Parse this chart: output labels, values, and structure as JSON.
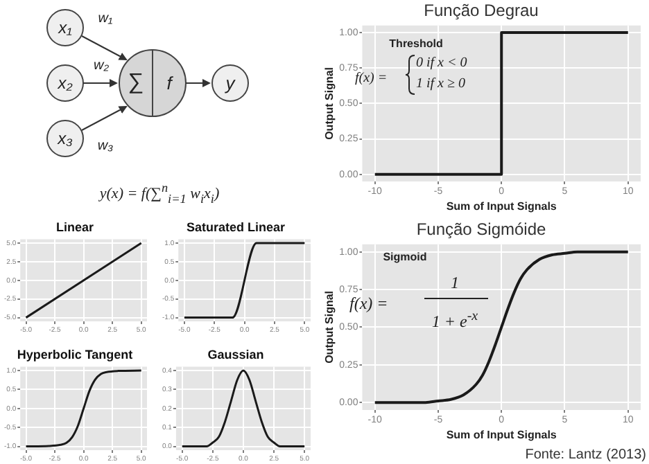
{
  "chart_data": [
    {
      "type": "other",
      "annotations": [
        "x₁",
        "x₂",
        "x₃",
        "w₁",
        "w₂",
        "w₃",
        "∑",
        "f",
        "y",
        "y(x) = f(∑$^{n}$$_{i=1}$ w$_{i}$x$_{i}$)"
      ]
    },
    {
      "type": "line",
      "title": "Função Degrau",
      "xlabel": "Sum of Input Signals",
      "ylabel": "Output Signal",
      "annotations": [
        "Threshold",
        "f(x) =",
        "0 if x < 0",
        "1 if x ≥ 0"
      ],
      "x": [
        -10,
        0,
        0,
        10
      ],
      "series": [
        {
          "color": "#1a1a1a",
          "values": [
            0,
            0,
            1,
            1
          ]
        }
      ],
      "xlim": [
        -11,
        11
      ],
      "ylim": [
        -0.05,
        1.05
      ],
      "xticks": [
        -10,
        -5,
        0,
        5,
        10
      ],
      "yticks": [
        {
          "value": 0,
          "label": "0.00"
        },
        {
          "value": 0.25,
          "label": "0.25"
        },
        {
          "value": 0.5,
          "label": "0.50"
        },
        {
          "value": 0.75,
          "label": "0.75"
        },
        {
          "value": 1,
          "label": "1.00"
        }
      ],
      "grid": true
    },
    {
      "type": "line",
      "title": "Função Sigmóide",
      "xlabel": "Sum of Input Signals",
      "ylabel": "Output Signal",
      "annotations": [
        "Sigmoid",
        "f(x) =",
        "1",
        "1 + e$^{-x}$",
        "Fonte: Lantz (2013)"
      ],
      "x": [
        -10,
        -8,
        -6,
        -5,
        -4,
        -3,
        -2,
        -1.5,
        -1,
        -0.5,
        0,
        0.5,
        1,
        1.5,
        2,
        3,
        4,
        5,
        6,
        8,
        10
      ],
      "series": [
        {
          "color": "#1a1a1a",
          "values": [
            0,
            0,
            0,
            0.01,
            0.02,
            0.05,
            0.12,
            0.18,
            0.27,
            0.38,
            0.5,
            0.62,
            0.73,
            0.82,
            0.88,
            0.95,
            0.98,
            0.99,
            1,
            1,
            1
          ]
        }
      ],
      "xlim": [
        -11,
        11
      ],
      "ylim": [
        -0.05,
        1.05
      ],
      "xticks": [
        -10,
        -5,
        0,
        5,
        10
      ],
      "yticks": [
        {
          "value": 0,
          "label": "0.00"
        },
        {
          "value": 0.25,
          "label": "0.25"
        },
        {
          "value": 0.5,
          "label": "0.50"
        },
        {
          "value": 0.75,
          "label": "0.75"
        },
        {
          "value": 1,
          "label": "1.00"
        }
      ],
      "grid": true
    },
    {
      "type": "line",
      "title": "Linear",
      "x": [
        -5,
        5
      ],
      "series": [
        {
          "color": "#1a1a1a",
          "values": [
            -5,
            5
          ]
        }
      ],
      "xlim": [
        -5.5,
        5.5
      ],
      "ylim": [
        -5.5,
        5.5
      ],
      "xticks": [
        {
          "value": -5,
          "label": "-5.0"
        },
        {
          "value": -2.5,
          "label": "-2.5"
        },
        {
          "value": 0,
          "label": "0.0"
        },
        {
          "value": 2.5,
          "label": "2.5"
        },
        {
          "value": 5,
          "label": "5.0"
        }
      ],
      "yticks": [
        {
          "value": -5,
          "label": "-5.0"
        },
        {
          "value": -2.5,
          "label": "-2.5"
        },
        {
          "value": 0,
          "label": "0.0"
        },
        {
          "value": 2.5,
          "label": "2.5"
        },
        {
          "value": 5,
          "label": "5.0"
        }
      ],
      "grid": true
    },
    {
      "type": "line",
      "title": "Saturated Linear",
      "x": [
        -5,
        -1,
        1,
        5
      ],
      "series": [
        {
          "color": "#1a1a1a",
          "values": [
            -1,
            -1,
            1,
            1
          ]
        }
      ],
      "xlim": [
        -5.5,
        5.5
      ],
      "ylim": [
        -1.1,
        1.1
      ],
      "xticks": [
        {
          "value": -5,
          "label": "-5.0"
        },
        {
          "value": -2.5,
          "label": "-2.5"
        },
        {
          "value": 0,
          "label": "0.0"
        },
        {
          "value": 2.5,
          "label": "2.5"
        },
        {
          "value": 5,
          "label": "5.0"
        }
      ],
      "yticks": [
        {
          "value": -1,
          "label": "-1.0"
        },
        {
          "value": -0.5,
          "label": "-0.5"
        },
        {
          "value": 0,
          "label": "0.0"
        },
        {
          "value": 0.5,
          "label": "0.5"
        },
        {
          "value": 1,
          "label": "1.0"
        }
      ],
      "grid": true
    },
    {
      "type": "line",
      "title": "Hyperbolic Tangent",
      "x": [
        -5,
        -3,
        -2,
        -1.5,
        -1,
        -0.5,
        0,
        0.5,
        1,
        1.5,
        2,
        3,
        5
      ],
      "series": [
        {
          "color": "#1a1a1a",
          "values": [
            -1,
            -0.99,
            -0.96,
            -0.91,
            -0.76,
            -0.46,
            0,
            0.46,
            0.76,
            0.91,
            0.96,
            0.99,
            1
          ]
        }
      ],
      "xlim": [
        -5.5,
        5.5
      ],
      "ylim": [
        -1.1,
        1.1
      ],
      "xticks": [
        {
          "value": -5,
          "label": "-5.0"
        },
        {
          "value": -2.5,
          "label": "-2.5"
        },
        {
          "value": 0,
          "label": "0.0"
        },
        {
          "value": 2.5,
          "label": "2.5"
        },
        {
          "value": 5,
          "label": "5.0"
        }
      ],
      "yticks": [
        {
          "value": -1,
          "label": "-1.0"
        },
        {
          "value": -0.5,
          "label": "-0.5"
        },
        {
          "value": 0,
          "label": "0.0"
        },
        {
          "value": 0.5,
          "label": "0.5"
        },
        {
          "value": 1,
          "label": "1.0"
        }
      ],
      "grid": true
    },
    {
      "type": "line",
      "title": "Gaussian",
      "x": [
        -5,
        -3,
        -2.5,
        -2,
        -1.5,
        -1,
        -0.5,
        0,
        0.5,
        1,
        1.5,
        2,
        2.5,
        3,
        5
      ],
      "series": [
        {
          "color": "#1a1a1a",
          "values": [
            0,
            0,
            0.02,
            0.05,
            0.13,
            0.24,
            0.35,
            0.4,
            0.35,
            0.24,
            0.13,
            0.05,
            0.02,
            0,
            0
          ]
        }
      ],
      "xlim": [
        -5.5,
        5.5
      ],
      "ylim": [
        -0.02,
        0.42
      ],
      "xticks": [
        {
          "value": -5,
          "label": "-5.0"
        },
        {
          "value": -2.5,
          "label": "-2.5"
        },
        {
          "value": 0,
          "label": "0.0"
        },
        {
          "value": 2.5,
          "label": "2.5"
        },
        {
          "value": 5,
          "label": "5.0"
        }
      ],
      "yticks": [
        {
          "value": 0,
          "label": "0.0"
        },
        {
          "value": 0.1,
          "label": "0.1"
        },
        {
          "value": 0.2,
          "label": "0.2"
        },
        {
          "value": 0.3,
          "label": "0.3"
        },
        {
          "value": 0.4,
          "label": "0.4"
        }
      ],
      "grid": true
    }
  ]
}
